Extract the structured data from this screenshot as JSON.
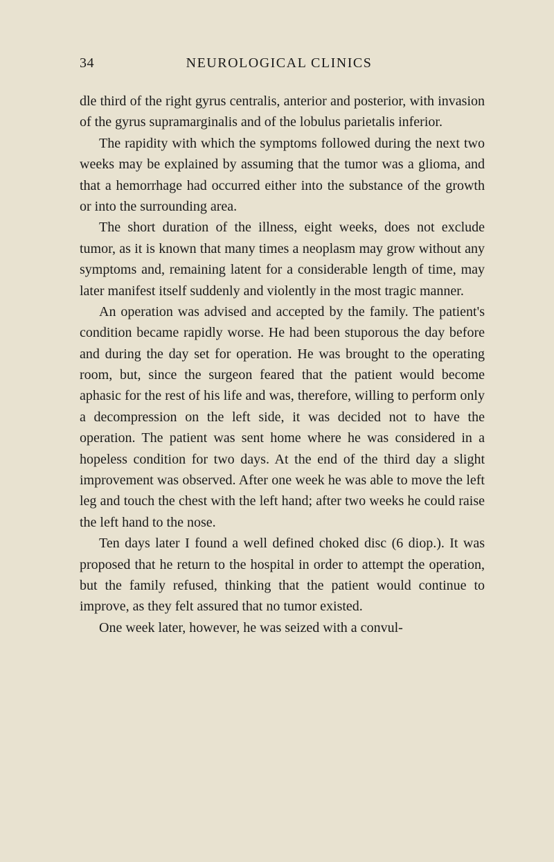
{
  "page": {
    "number": "34",
    "running_title": "NEUROLOGICAL CLINICS",
    "background_color": "#e8e2d0",
    "text_color": "#1a1a1a",
    "font_family": "Times New Roman",
    "body_fontsize_pt": 15,
    "title_fontsize_pt": 15,
    "line_height": 1.52
  },
  "paragraphs": [
    "dle third of the right gyrus centralis, anterior and pos­terior, with invasion of the gyrus supramarginalis and of the lobulus parietalis inferior.",
    "The rapidity with which the symptoms followed dur­ing the next two weeks may be explained by assuming that the tumor was a glioma, and that a hemorrhage had occurred either into the substance of the growth or into the surrounding area.",
    "The short duration of the illness, eight weeks, does not exclude tumor, as it is known that many times a neoplasm may grow without any symptoms and, remaining latent for a considerable length of time, may later manifest itself suddenly and violently in the most tragic manner.",
    "An operation was advised and accepted by the family. The patient's condition became rapidly worse. He had been stuporous the day before and during the day set for operation. He was brought to the operating room, but, since the surgeon feared that the patient would be­come aphasic for the rest of his life and was, therefore, willing to perform only a decompression on the left side, it was decided not to have the operation. The patient was sent home where he was considered in a hopeless condition for two days. At the end of the third day a slight improvement was observed. After one week he was able to move the left leg and touch the chest with the left hand; after two weeks he could raise the left hand to the nose.",
    "Ten days later I found a well defined choked disc (6 diop.). It was proposed that he return to the hospital in order to attempt the operation, but the family refused, thinking that the patient would continue to improve, as they felt assured that no tumor existed.",
    "One week later, however, he was seized with a convul-"
  ]
}
